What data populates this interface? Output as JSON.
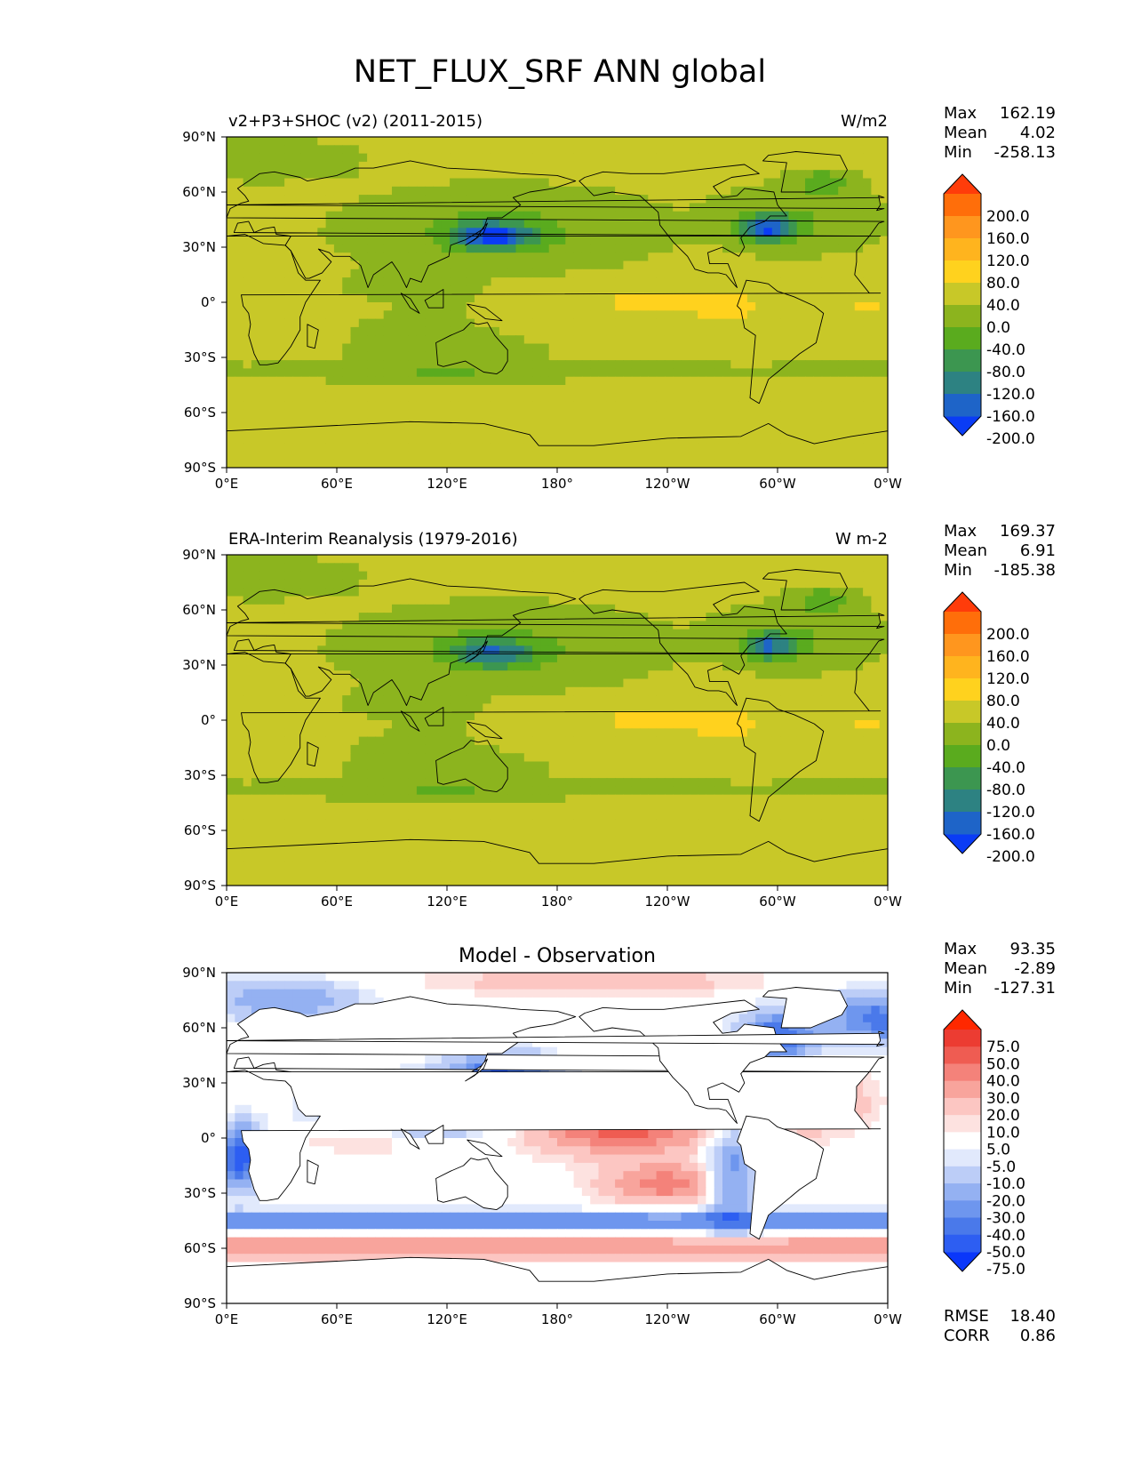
{
  "title": "NET_FLUX_SRF ANN global",
  "colors": {
    "main": [
      "#0a3cf5",
      "#1e64c8",
      "#2d8282",
      "#3c9650",
      "#5aab1e",
      "#8cb41e",
      "#c8c828",
      "#ffd21e",
      "#ffb41e",
      "#ff961e",
      "#ff6e0a",
      "#ff3c0a"
    ],
    "diff": [
      "#0a37fa",
      "#2d5ef2",
      "#4a79ea",
      "#6e96ee",
      "#94b1f2",
      "#bccdf7",
      "#e1e9fc",
      "#ffffff",
      "#fde2e0",
      "#fcc6c2",
      "#f8a49c",
      "#f4827a",
      "#ef5c52",
      "#ec3c32",
      "#ff2800"
    ],
    "land_outline": "#000000"
  },
  "chart_data": [
    {
      "type": "heatmap",
      "panel": "model",
      "title": "v2+P3+SHOC (v2) (2011-2015)",
      "units": "W/m2",
      "stats": [
        {
          "label": "Max",
          "value": "162.19"
        },
        {
          "label": "Mean",
          "value": "4.02"
        },
        {
          "label": "Min",
          "value": "-258.13"
        }
      ],
      "colorbar_levels": [
        "200.0",
        "160.0",
        "120.0",
        "80.0",
        "40.0",
        "0.0",
        "-40.0",
        "-80.0",
        "-120.0",
        "-160.0",
        "-200.0"
      ],
      "xticks": [
        "0°E",
        "60°E",
        "120°E",
        "180°",
        "120°W",
        "60°W",
        "0°W"
      ],
      "yticks": [
        "90°N",
        "60°N",
        "30°N",
        "0°",
        "30°S",
        "60°S",
        "90°S"
      ],
      "xlim": [
        0,
        360
      ],
      "ylim": [
        -90,
        90
      ]
    },
    {
      "type": "heatmap",
      "panel": "reference",
      "title": "ERA-Interim Reanalysis (1979-2016)",
      "units": "W m-2",
      "stats": [
        {
          "label": "Max",
          "value": "169.37"
        },
        {
          "label": "Mean",
          "value": "6.91"
        },
        {
          "label": "Min",
          "value": "-185.38"
        }
      ],
      "colorbar_levels": [
        "200.0",
        "160.0",
        "120.0",
        "80.0",
        "40.0",
        "0.0",
        "-40.0",
        "-80.0",
        "-120.0",
        "-160.0",
        "-200.0"
      ],
      "xticks": [
        "0°E",
        "60°E",
        "120°E",
        "180°",
        "120°W",
        "60°W",
        "0°W"
      ],
      "yticks": [
        "90°N",
        "60°N",
        "30°N",
        "0°",
        "30°S",
        "60°S",
        "90°S"
      ],
      "xlim": [
        0,
        360
      ],
      "ylim": [
        -90,
        90
      ]
    },
    {
      "type": "heatmap",
      "panel": "difference",
      "title": "Model - Observation",
      "units": "",
      "stats": [
        {
          "label": "Max",
          "value": "93.35"
        },
        {
          "label": "Mean",
          "value": "-2.89"
        },
        {
          "label": "Min",
          "value": "-127.31"
        }
      ],
      "extra_stats": [
        {
          "label": "RMSE",
          "value": "18.40"
        },
        {
          "label": "CORR",
          "value": "0.86"
        }
      ],
      "colorbar_levels": [
        "75.0",
        "50.0",
        "40.0",
        "30.0",
        "20.0",
        "10.0",
        "5.0",
        "-5.0",
        "-10.0",
        "-20.0",
        "-30.0",
        "-40.0",
        "-50.0",
        "-75.0"
      ],
      "xticks": [
        "0°E",
        "60°E",
        "120°E",
        "180°",
        "120°W",
        "60°W",
        "0°W"
      ],
      "yticks": [
        "90°N",
        "60°N",
        "30°N",
        "0°",
        "30°S",
        "60°S",
        "90°S"
      ],
      "xlim": [
        0,
        360
      ],
      "ylim": [
        -90,
        90
      ]
    }
  ]
}
